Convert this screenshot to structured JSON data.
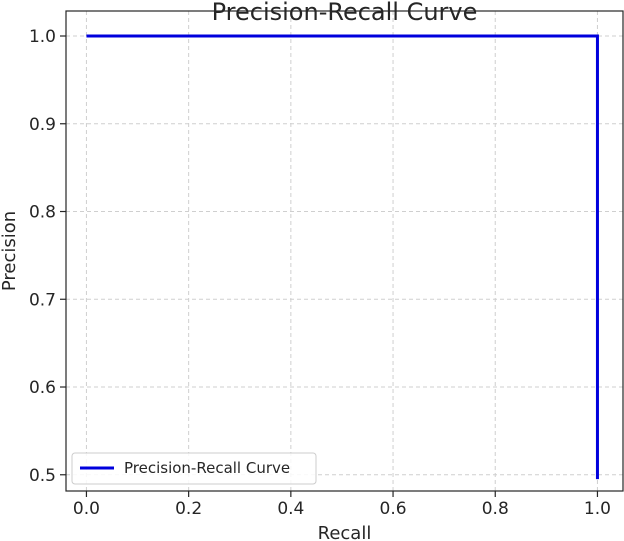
{
  "chart_data": {
    "type": "line",
    "title": "Precision-Recall Curve",
    "xlabel": "Recall",
    "ylabel": "Precision",
    "xlim": [
      -0.04,
      1.05
    ],
    "ylim": [
      0.4815,
      1.0285
    ],
    "xticks": [
      0.0,
      0.2,
      0.4,
      0.6,
      0.8,
      1.0
    ],
    "xtick_labels": [
      "0.0",
      "0.2",
      "0.4",
      "0.6",
      "0.8",
      "1.0"
    ],
    "yticks": [
      0.5,
      0.6,
      0.7,
      0.8,
      0.9,
      1.0
    ],
    "ytick_labels": [
      "0.5",
      "0.6",
      "0.7",
      "0.8",
      "0.9",
      "1.0"
    ],
    "grid": true,
    "legend_position": "lower-left",
    "series": [
      {
        "name": "Precision-Recall Curve",
        "color": "#0000dd",
        "x": [
          0.0,
          1.0,
          1.0
        ],
        "y": [
          1.0,
          1.0,
          0.495
        ]
      }
    ]
  }
}
